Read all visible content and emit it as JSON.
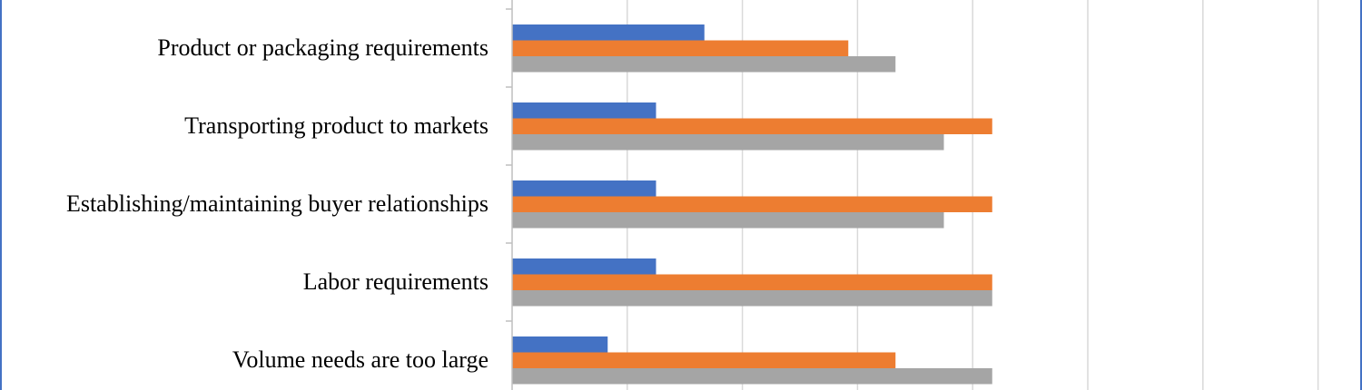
{
  "chart_data": {
    "type": "bar",
    "orientation": "horizontal",
    "categories": [
      "Product or packaging requirements",
      "Transporting product to markets",
      "Establishing/maintaining buyer relationships",
      "Labor requirements",
      "Volume needs are too large"
    ],
    "series": [
      {
        "color": "#4472c4",
        "values": [
          1.67,
          1.25,
          1.25,
          1.25,
          0.83
        ]
      },
      {
        "color": "#ed7d31",
        "values": [
          2.92,
          4.17,
          4.17,
          4.17,
          3.33
        ]
      },
      {
        "color": "#a5a5a5",
        "values": [
          3.33,
          3.75,
          3.75,
          4.17,
          4.17
        ]
      }
    ],
    "xlim": [
      0,
      7
    ],
    "grid": true,
    "title": "",
    "xlabel": "",
    "ylabel": ""
  },
  "colors": {
    "frame": "#4472c4",
    "gridline": "#d9d9d9",
    "axis": "#bfbfbf"
  }
}
